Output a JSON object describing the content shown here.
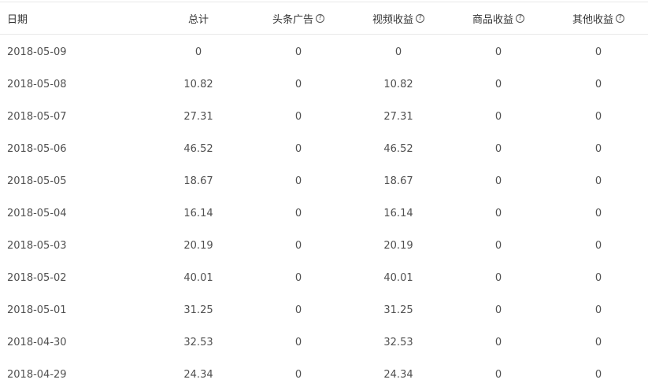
{
  "header": {
    "date": "日期",
    "total": "总计",
    "ads": "头条广告",
    "video": "视频收益",
    "goods": "商品收益",
    "other": "其他收益",
    "help_glyph": "?"
  },
  "rows": [
    {
      "date": "2018-05-09",
      "total": "0",
      "ads": "0",
      "video": "0",
      "goods": "0",
      "other": "0"
    },
    {
      "date": "2018-05-08",
      "total": "10.82",
      "ads": "0",
      "video": "10.82",
      "goods": "0",
      "other": "0"
    },
    {
      "date": "2018-05-07",
      "total": "27.31",
      "ads": "0",
      "video": "27.31",
      "goods": "0",
      "other": "0"
    },
    {
      "date": "2018-05-06",
      "total": "46.52",
      "ads": "0",
      "video": "46.52",
      "goods": "0",
      "other": "0"
    },
    {
      "date": "2018-05-05",
      "total": "18.67",
      "ads": "0",
      "video": "18.67",
      "goods": "0",
      "other": "0"
    },
    {
      "date": "2018-05-04",
      "total": "16.14",
      "ads": "0",
      "video": "16.14",
      "goods": "0",
      "other": "0"
    },
    {
      "date": "2018-05-03",
      "total": "20.19",
      "ads": "0",
      "video": "20.19",
      "goods": "0",
      "other": "0"
    },
    {
      "date": "2018-05-02",
      "total": "40.01",
      "ads": "0",
      "video": "40.01",
      "goods": "0",
      "other": "0"
    },
    {
      "date": "2018-05-01",
      "total": "31.25",
      "ads": "0",
      "video": "31.25",
      "goods": "0",
      "other": "0"
    },
    {
      "date": "2018-04-30",
      "total": "32.53",
      "ads": "0",
      "video": "32.53",
      "goods": "0",
      "other": "0"
    },
    {
      "date": "2018-04-29",
      "total": "24.34",
      "ads": "0",
      "video": "24.34",
      "goods": "0",
      "other": "0"
    }
  ]
}
